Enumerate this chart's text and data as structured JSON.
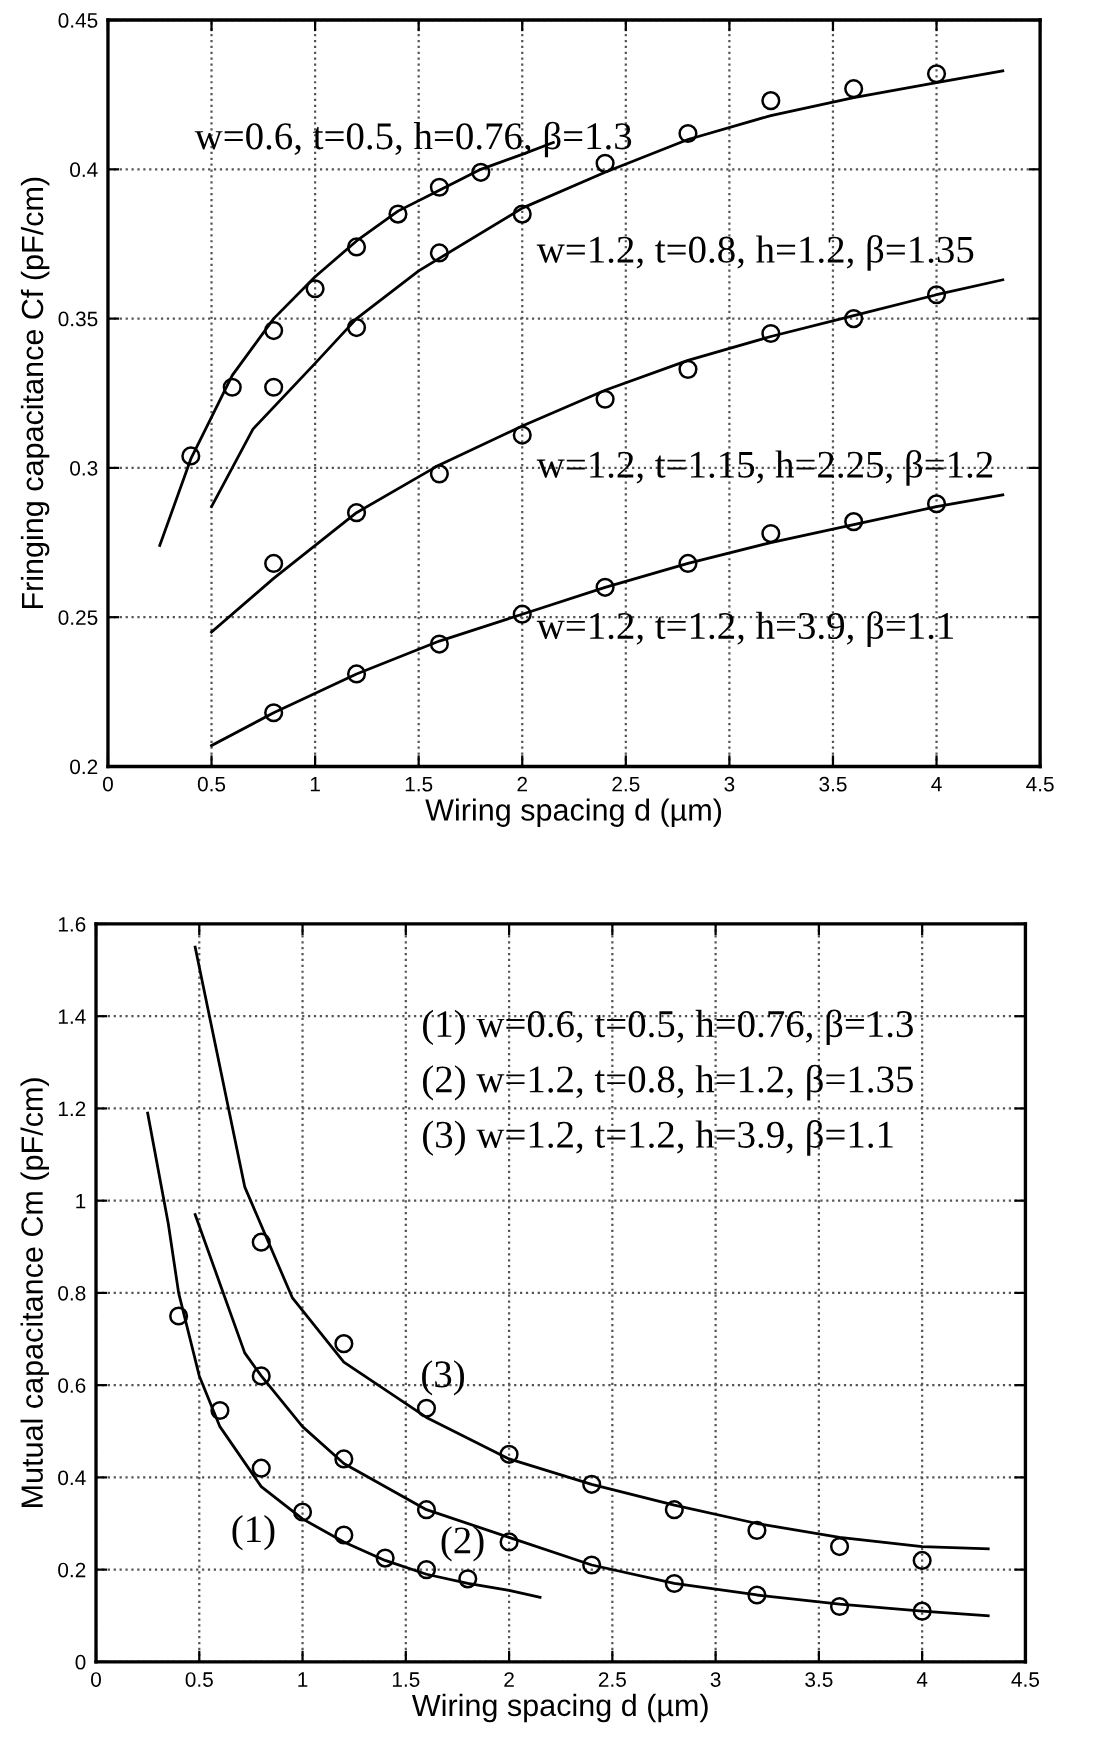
{
  "chart_data": [
    {
      "type": "line",
      "xlabel": "Wiring spacing d (µm)",
      "ylabel": "Fringing capacitance Cf (pF/cm)",
      "xlim": [
        0,
        4.5
      ],
      "xticks": [
        0,
        0.5,
        1,
        1.5,
        2,
        2.5,
        3,
        3.5,
        4,
        4.5
      ],
      "ylim": [
        0.2,
        0.45
      ],
      "yticks": [
        0.2,
        0.25,
        0.3,
        0.35,
        0.4,
        0.45
      ],
      "grid": true,
      "line_style": "solid",
      "series": [
        {
          "color": "#000000",
          "marker": "none",
          "x": [
            0.25,
            0.4,
            0.6,
            0.8,
            1.0,
            1.2,
            1.4,
            1.6,
            1.8,
            2.0,
            2.15
          ],
          "values": [
            0.274,
            0.303,
            0.331,
            0.35,
            0.364,
            0.376,
            0.386,
            0.393,
            0.4,
            0.405,
            0.409
          ]
        },
        {
          "type": "scatter",
          "color": "#000000",
          "marker": "circle",
          "x": [
            0.4,
            0.6,
            0.8,
            1.0,
            1.2,
            1.4,
            1.6,
            1.8
          ],
          "values": [
            0.304,
            0.327,
            0.346,
            0.36,
            0.374,
            0.385,
            0.394,
            0.399
          ]
        },
        {
          "color": "#000000",
          "marker": "none",
          "x": [
            0.5,
            0.7,
            1.0,
            1.2,
            1.5,
            2.0,
            2.4,
            2.8,
            3.2,
            3.6,
            4.0,
            4.32
          ],
          "values": [
            0.287,
            0.313,
            0.335,
            0.35,
            0.366,
            0.387,
            0.399,
            0.41,
            0.418,
            0.424,
            0.429,
            0.433
          ]
        },
        {
          "type": "scatter",
          "color": "#000000",
          "marker": "circle",
          "x": [
            0.8,
            1.2,
            1.6,
            2.0,
            2.4,
            2.8,
            3.2,
            3.6,
            4.0
          ],
          "values": [
            0.327,
            0.347,
            0.372,
            0.385,
            0.402,
            0.412,
            0.423,
            0.427,
            0.432
          ]
        },
        {
          "color": "#000000",
          "marker": "none",
          "x": [
            0.5,
            0.8,
            1.2,
            1.6,
            2.0,
            2.4,
            2.8,
            3.2,
            3.6,
            4.0,
            4.32
          ],
          "values": [
            0.245,
            0.263,
            0.285,
            0.301,
            0.314,
            0.326,
            0.336,
            0.344,
            0.351,
            0.358,
            0.363
          ]
        },
        {
          "type": "scatter",
          "color": "#000000",
          "marker": "circle",
          "x": [
            0.8,
            1.2,
            1.6,
            2.0,
            2.4,
            2.8,
            3.2,
            3.6,
            4.0
          ],
          "values": [
            0.268,
            0.285,
            0.298,
            0.311,
            0.323,
            0.333,
            0.345,
            0.35,
            0.358
          ]
        },
        {
          "color": "#000000",
          "marker": "none",
          "x": [
            0.5,
            0.8,
            1.2,
            1.6,
            2.0,
            2.4,
            2.8,
            3.2,
            3.6,
            4.0,
            4.32
          ],
          "values": [
            0.207,
            0.218,
            0.231,
            0.242,
            0.251,
            0.26,
            0.268,
            0.275,
            0.281,
            0.287,
            0.291
          ]
        },
        {
          "type": "scatter",
          "color": "#000000",
          "marker": "circle",
          "x": [
            0.8,
            1.2,
            1.6,
            2.0,
            2.4,
            2.8,
            3.2,
            3.6,
            4.0
          ],
          "values": [
            0.218,
            0.231,
            0.241,
            0.251,
            0.26,
            0.268,
            0.278,
            0.282,
            0.288
          ]
        }
      ],
      "annotations": [
        "w=0.6, t=0.5, h=0.76, β=1.3",
        "w=1.2, t=0.8, h=1.2, β=1.35",
        "w=1.2, t=1.15, h=2.25, β=1.2",
        "w=1.2, t=1.2, h=3.9, β=1.1"
      ]
    },
    {
      "type": "line",
      "xlabel": "Wiring spacing d (µm)",
      "ylabel": "Mutual capacitance Cm (pF/cm)",
      "xlim": [
        0,
        4.5
      ],
      "xticks": [
        0,
        0.5,
        1,
        1.5,
        2,
        2.5,
        3,
        3.5,
        4,
        4.5
      ],
      "ylim": [
        0,
        1.6
      ],
      "yticks": [
        0,
        0.2,
        0.4,
        0.6,
        0.8,
        1,
        1.2,
        1.4,
        1.6
      ],
      "grid": true,
      "line_style": "solid",
      "series": [
        {
          "color": "#000000",
          "marker": "none",
          "x": [
            0.25,
            0.35,
            0.4,
            0.5,
            0.6,
            0.8,
            1.0,
            1.2,
            1.4,
            1.6,
            1.8,
            2.0,
            2.15
          ],
          "values": [
            1.19,
            0.95,
            0.8,
            0.62,
            0.51,
            0.38,
            0.31,
            0.26,
            0.22,
            0.19,
            0.17,
            0.155,
            0.14
          ]
        },
        {
          "type": "scatter",
          "color": "#000000",
          "marker": "circle",
          "x": [
            0.4,
            0.6,
            0.8,
            1.0,
            1.2,
            1.4,
            1.6,
            1.8
          ],
          "values": [
            0.75,
            0.545,
            0.42,
            0.325,
            0.275,
            0.225,
            0.2,
            0.18
          ]
        },
        {
          "color": "#000000",
          "marker": "none",
          "x": [
            0.48,
            0.6,
            0.72,
            0.8,
            1.0,
            1.2,
            1.6,
            2.0,
            2.4,
            2.8,
            3.2,
            3.6,
            4.0,
            4.32
          ],
          "values": [
            0.97,
            0.82,
            0.67,
            0.62,
            0.51,
            0.43,
            0.33,
            0.27,
            0.21,
            0.17,
            0.145,
            0.125,
            0.11,
            0.1
          ]
        },
        {
          "type": "scatter",
          "color": "#000000",
          "marker": "circle",
          "x": [
            0.8,
            1.2,
            1.6,
            2.0,
            2.4,
            2.8,
            3.2,
            3.6,
            4.0
          ],
          "values": [
            0.62,
            0.44,
            0.33,
            0.26,
            0.21,
            0.17,
            0.145,
            0.12,
            0.11
          ]
        },
        {
          "color": "#000000",
          "marker": "none",
          "x": [
            0.48,
            0.72,
            0.95,
            1.2,
            1.6,
            2.0,
            2.4,
            2.8,
            3.2,
            3.6,
            4.0,
            4.32
          ],
          "values": [
            1.55,
            1.03,
            0.79,
            0.65,
            0.53,
            0.44,
            0.385,
            0.34,
            0.3,
            0.27,
            0.25,
            0.245
          ]
        },
        {
          "type": "scatter",
          "color": "#000000",
          "marker": "circle",
          "x": [
            0.8,
            1.2,
            1.6,
            2.0,
            2.4,
            2.8,
            3.2,
            3.6,
            4.0
          ],
          "values": [
            0.91,
            0.69,
            0.55,
            0.45,
            0.385,
            0.33,
            0.285,
            0.25,
            0.22
          ]
        }
      ],
      "annotations": [
        "(1) w=0.6, t=0.5, h=0.76, β=1.3",
        "(2) w=1.2, t=0.8, h=1.2, β=1.35",
        "(3) w=1.2, t=1.2, h=3.9, β=1.1",
        "(3)",
        "(2)",
        "(1)"
      ]
    }
  ]
}
